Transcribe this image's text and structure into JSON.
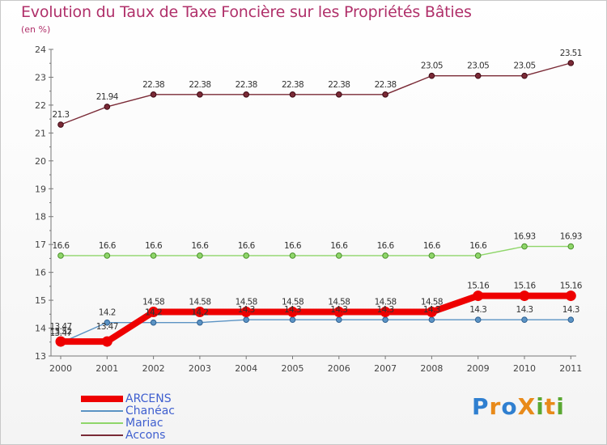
{
  "title": "Evolution du Taux de Taxe Foncière sur les Propriétés Bâties",
  "subtitle": "(en %)",
  "logo": "ProXiti",
  "chart_data": {
    "type": "line",
    "title": "Evolution du Taux de Taxe Foncière sur les Propriétés Bâties",
    "ylabel": "(en %)",
    "xlabel": "",
    "categories": [
      "2000",
      "2001",
      "2002",
      "2003",
      "2004",
      "2005",
      "2006",
      "2007",
      "2008",
      "2009",
      "2010",
      "2011"
    ],
    "ylim": [
      13,
      24
    ],
    "yticks": [
      "13",
      "14",
      "15",
      "16",
      "17",
      "18",
      "19",
      "20",
      "21",
      "22",
      "23",
      "24"
    ],
    "series": [
      {
        "name": "ARCENS",
        "color": "#ee0000",
        "values": [
          13.52,
          13.52,
          14.58,
          14.58,
          14.58,
          14.58,
          14.58,
          14.58,
          14.58,
          15.16,
          15.16,
          15.16
        ],
        "labels": [
          "13.52",
          "",
          "14.58",
          "14.58",
          "14.58",
          "14.58",
          "14.58",
          "14.58",
          "14.58",
          "15.16",
          "15.16",
          "15.16"
        ]
      },
      {
        "name": "Chanéac",
        "color": "#5b93c4",
        "values": [
          13.47,
          14.2,
          14.2,
          14.2,
          14.3,
          14.3,
          14.3,
          14.3,
          14.3,
          14.3,
          14.3,
          14.3
        ],
        "labels": [
          "13.47",
          "14.2",
          "14.2",
          "14.2",
          "14.3",
          "14.3",
          "14.3",
          "14.3",
          "14.3",
          "14.3",
          "14.3",
          "14.3"
        ]
      },
      {
        "name": "Mariac",
        "color": "#8fd66a",
        "values": [
          16.6,
          16.6,
          16.6,
          16.6,
          16.6,
          16.6,
          16.6,
          16.6,
          16.6,
          16.6,
          16.93,
          16.93
        ],
        "labels": [
          "16.6",
          "16.6",
          "16.6",
          "16.6",
          "16.6",
          "16.6",
          "16.6",
          "16.6",
          "16.6",
          "16.6",
          "16.93",
          "16.93"
        ]
      },
      {
        "name": "Accons",
        "color": "#7a2a36",
        "values": [
          21.3,
          21.94,
          22.38,
          22.38,
          22.38,
          22.38,
          22.38,
          22.38,
          23.05,
          23.05,
          23.05,
          23.51
        ],
        "labels": [
          "21.3",
          "21.94",
          "22.38",
          "22.38",
          "22.38",
          "22.38",
          "22.38",
          "22.38",
          "23.05",
          "23.05",
          "23.05",
          "23.51"
        ]
      }
    ],
    "extra_labels": [
      "13.47",
      "14.2"
    ],
    "grid": false,
    "legend": "bottom-left"
  }
}
